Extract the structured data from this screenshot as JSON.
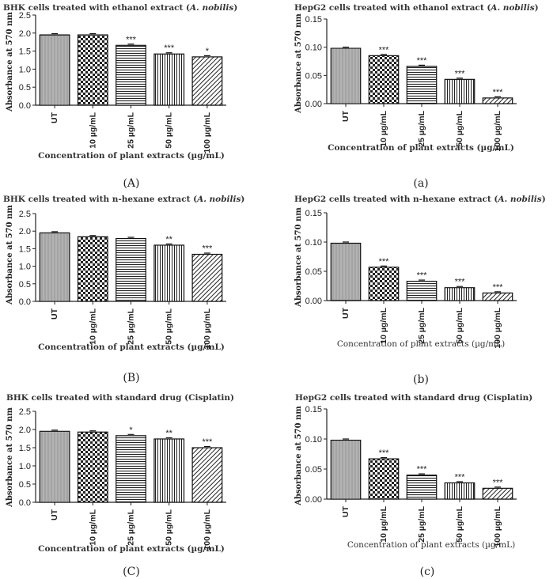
{
  "chart_data": [
    {
      "type": "bar",
      "panel": "(A)",
      "title_prefix": "BHK cells treated with ethanol extract (",
      "title_italic": "A. nobilis",
      "title_suffix": ")",
      "categories": [
        "UT",
        "10 µg/mL",
        "25 µg/mL",
        "50 µg/mL",
        "100 µg/mL"
      ],
      "values": [
        1.95,
        1.95,
        1.66,
        1.42,
        1.34
      ],
      "significance": [
        "",
        "",
        "***",
        "***",
        "*"
      ],
      "ylabel": "Absorbance at 570 nm",
      "xlabel": "Concentration of plant extracts (µg/mL)",
      "ylim": [
        0,
        2.5
      ],
      "yticks": [
        "0.0",
        "0.5",
        "1.0",
        "1.5",
        "2.0",
        "2.5"
      ],
      "ytick_values": [
        0,
        0.5,
        1.0,
        1.5,
        2.0,
        2.5
      ]
    },
    {
      "type": "bar",
      "panel": "(a)",
      "title_prefix": "HepG2 cells treated with ethanol extract (",
      "title_italic": "A. nobilis",
      "title_suffix": ")",
      "categories": [
        "UT",
        "10 µg/mL",
        "25 µg/mL",
        "50 µg/mL",
        "100 µg/mL"
      ],
      "values": [
        0.098,
        0.085,
        0.066,
        0.043,
        0.01
      ],
      "significance": [
        "",
        "***",
        "***",
        "***",
        "***"
      ],
      "ylabel": "Absorbance at 570 nm",
      "xlabel": "Concentration of plant extracts (µg/mL)",
      "ylim": [
        0,
        0.15
      ],
      "yticks": [
        "0.00",
        "0.05",
        "0.10",
        "0.15"
      ],
      "ytick_values": [
        0,
        0.05,
        0.1,
        0.15
      ]
    },
    {
      "type": "bar",
      "panel": "(B)",
      "title_prefix": "BHK cells treated with n-hexane extract (",
      "title_italic": "A. nobilis",
      "title_suffix": ")",
      "categories": [
        "UT",
        "10 µg/mL",
        "25 µg/mL",
        "50 µg/mL",
        "100 µg/mL"
      ],
      "values": [
        1.95,
        1.84,
        1.79,
        1.6,
        1.34
      ],
      "significance": [
        "",
        "",
        "",
        "**",
        "***"
      ],
      "ylabel": "Absorbance at 570 nm",
      "xlabel": "Concentration of plant extracts (µg/mL)",
      "ylim": [
        0,
        2.5
      ],
      "yticks": [
        "0.0",
        "0.5",
        "1.0",
        "1.5",
        "2.0",
        "2.5"
      ],
      "ytick_values": [
        0,
        0.5,
        1.0,
        1.5,
        2.0,
        2.5
      ]
    },
    {
      "type": "bar",
      "panel": "(b)",
      "title_prefix": "HepG2 cells treated with n-hexane extract (",
      "title_italic": "A. nobilis",
      "title_suffix": ")",
      "categories": [
        "UT",
        "10 µg/mL",
        "25 µg/mL",
        "50 µg/mL",
        "100 µg/mL"
      ],
      "values": [
        0.098,
        0.057,
        0.033,
        0.022,
        0.013
      ],
      "significance": [
        "",
        "***",
        "***",
        "***",
        "***"
      ],
      "ylabel": "Absorbance at 570 nm",
      "xlabel": "Concentration of plant extracts (µg/mL)",
      "ylim": [
        0,
        0.15
      ],
      "yticks": [
        "0.00",
        "0.05",
        "0.10",
        "0.15"
      ],
      "ytick_values": [
        0,
        0.05,
        0.1,
        0.15
      ]
    },
    {
      "type": "bar",
      "panel": "(C)",
      "title_prefix": "BHK cells treated with standard drug (Cisplatin)",
      "title_italic": "",
      "title_suffix": "",
      "categories": [
        "UT",
        "10 µg/mL",
        "25 µg/mL",
        "50 µg/mL",
        "100 µg/mL"
      ],
      "values": [
        1.95,
        1.93,
        1.83,
        1.74,
        1.5
      ],
      "significance": [
        "",
        "",
        "*",
        "**",
        "***"
      ],
      "ylabel": "Absorbance at 570 nm",
      "xlabel": "Concentration of plant extracts (µg/mL)",
      "ylim": [
        0,
        2.5
      ],
      "yticks": [
        "0.0",
        "0.5",
        "1.0",
        "1.5",
        "2.0",
        "2.5"
      ],
      "ytick_values": [
        0,
        0.5,
        1.0,
        1.5,
        2.0,
        2.5
      ]
    },
    {
      "type": "bar",
      "panel": "(c)",
      "title_prefix": "HepG2 cells treated with standard drug (Cisplatin)",
      "title_italic": "",
      "title_suffix": "",
      "categories": [
        "UT",
        "10 µg/mL",
        "25 µg/mL",
        "50 µg/mL",
        "100 µg/mL"
      ],
      "values": [
        0.098,
        0.067,
        0.04,
        0.027,
        0.018
      ],
      "significance": [
        "",
        "***",
        "***",
        "***",
        "***"
      ],
      "ylabel": "Absorbance at 570 nm",
      "xlabel": "Concentration of plant extracts (µg/mL)",
      "ylim": [
        0,
        0.15
      ],
      "yticks": [
        "0.00",
        "0.05",
        "0.10",
        "0.15"
      ],
      "ytick_values": [
        0,
        0.05,
        0.1,
        0.15
      ]
    }
  ]
}
